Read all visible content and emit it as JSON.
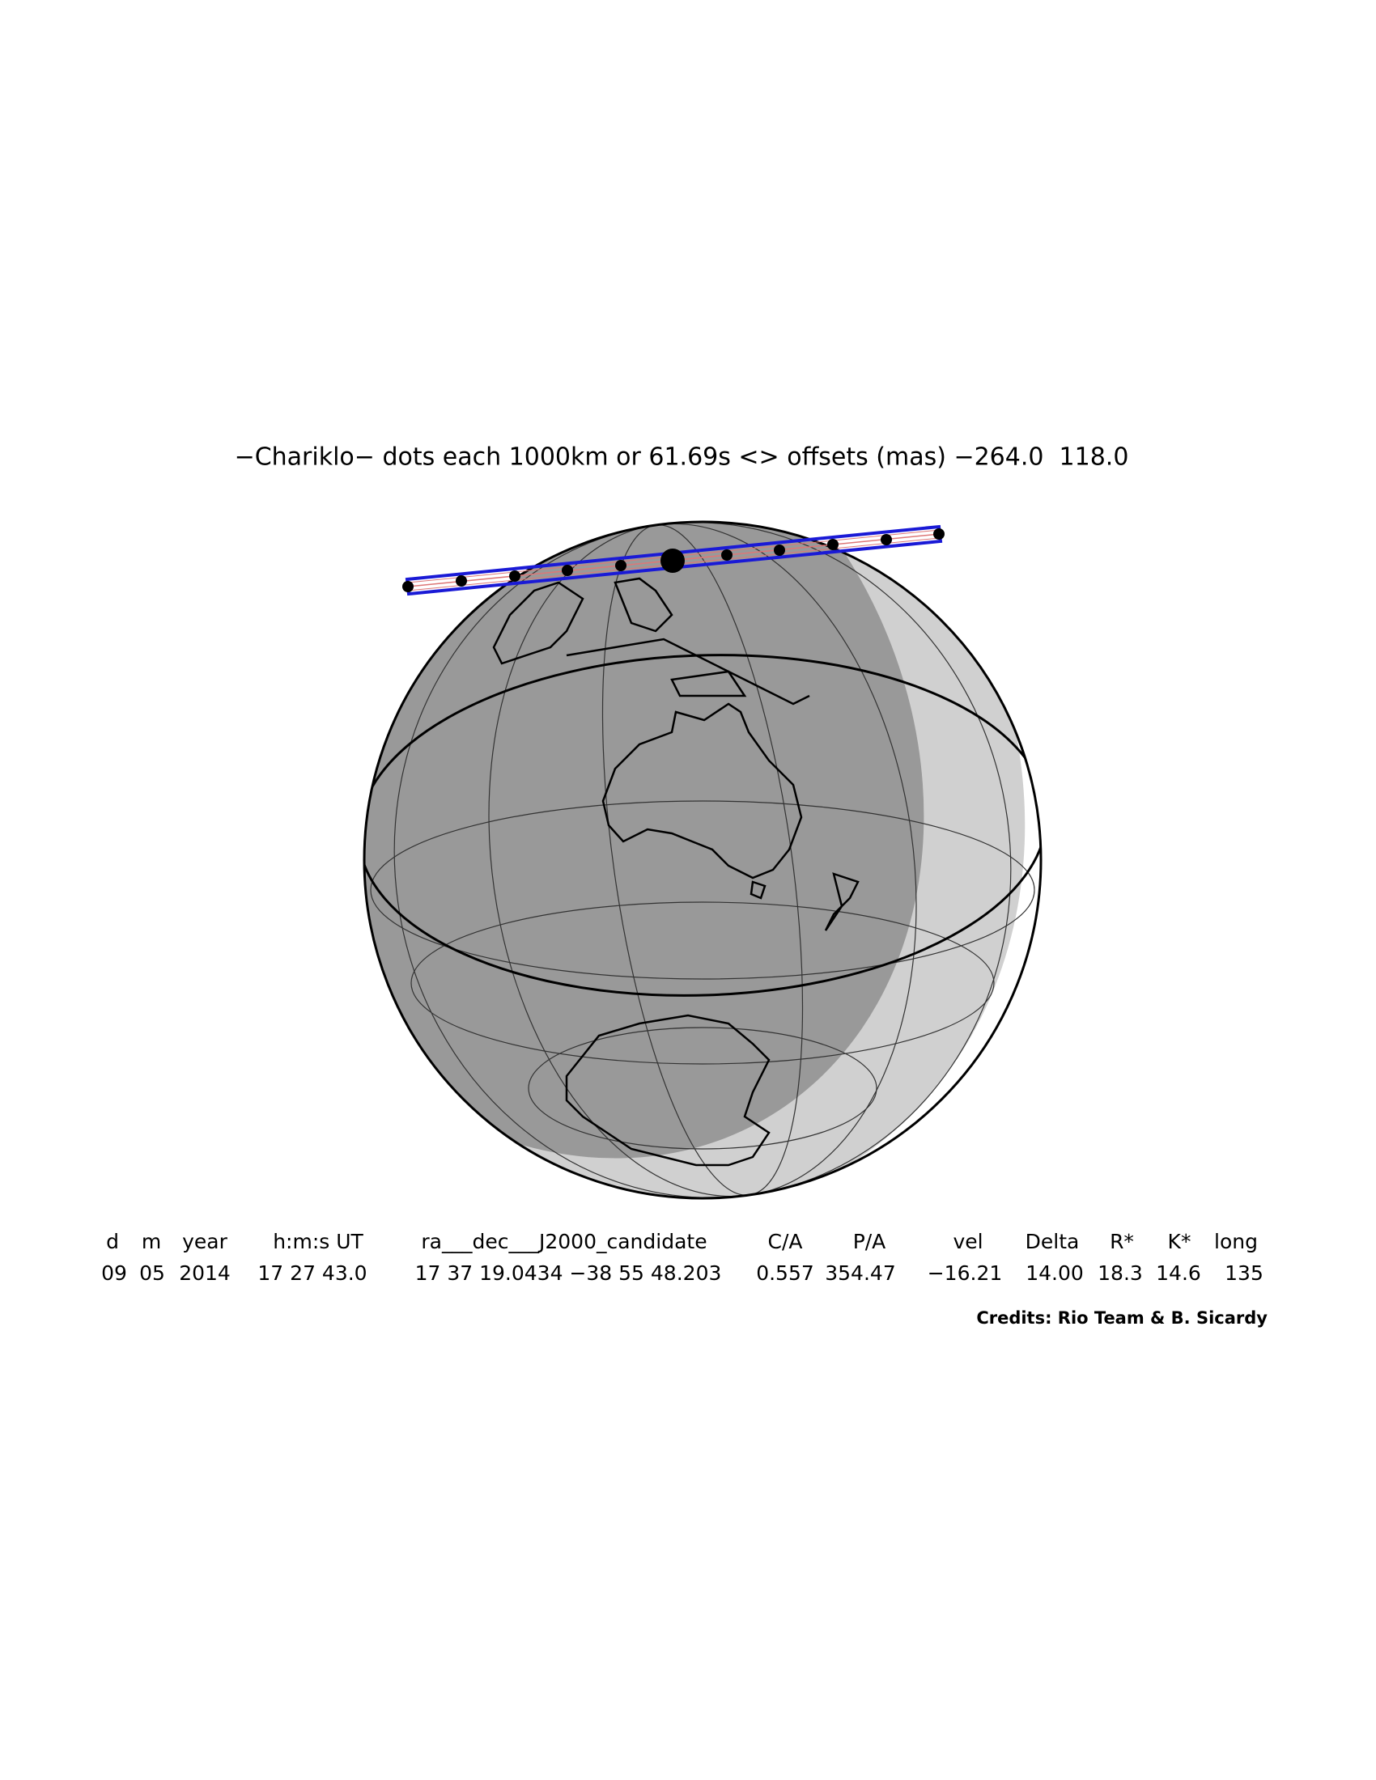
{
  "title": "−Chariklo− dots each 1000km or 61.69s <> offsets (mas) −264.0  118.0",
  "table": {
    "header": [
      "d",
      "m",
      "year",
      "h:m:s UT",
      "ra___dec___J2000_candidate",
      "C/A",
      "P/A",
      "vel",
      "Delta",
      "R*",
      "K*",
      "long"
    ],
    "values": [
      "09",
      "05",
      "2014",
      "17 27 43.0",
      "17 37 19.0434 −38 55 48.203",
      "0.557",
      "354.47",
      "−16.21",
      "14.00",
      "18.3",
      "14.6",
      "135"
    ]
  },
  "credits": "Credits: Rio Team & B. Sicardy"
}
